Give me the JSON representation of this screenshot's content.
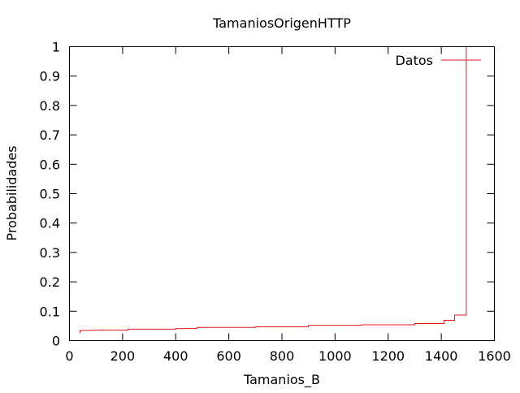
{
  "chart_data": {
    "type": "line",
    "title": "TamaniosOrigenHTTP",
    "xlabel": "Tamanios_B",
    "ylabel": "Probabilidades",
    "xlim": [
      0,
      1600
    ],
    "ylim": [
      0,
      1
    ],
    "x_ticks": [
      "0",
      "200",
      "400",
      "600",
      "800",
      "1000",
      "1200",
      "1400",
      "1600"
    ],
    "y_ticks": [
      "0",
      "0.1",
      "0.2",
      "0.3",
      "0.4",
      "0.5",
      "0.6",
      "0.7",
      "0.8",
      "0.9",
      "1"
    ],
    "grid": false,
    "legend_position": "top-right",
    "series": [
      {
        "name": "Datos",
        "color": "#e41a1c",
        "style": "step",
        "x": [
          40,
          40,
          44,
          44,
          100,
          100,
          220,
          220,
          400,
          400,
          480,
          480,
          700,
          700,
          900,
          900,
          1100,
          1100,
          1300,
          1300,
          1410,
          1410,
          1450,
          1450,
          1494,
          1494
        ],
        "y": [
          0.026,
          0.033,
          0.033,
          0.035,
          0.035,
          0.036,
          0.036,
          0.039,
          0.039,
          0.041,
          0.041,
          0.045,
          0.045,
          0.047,
          0.047,
          0.052,
          0.052,
          0.054,
          0.054,
          0.058,
          0.058,
          0.069,
          0.069,
          0.087,
          0.087,
          1.0
        ]
      }
    ]
  }
}
